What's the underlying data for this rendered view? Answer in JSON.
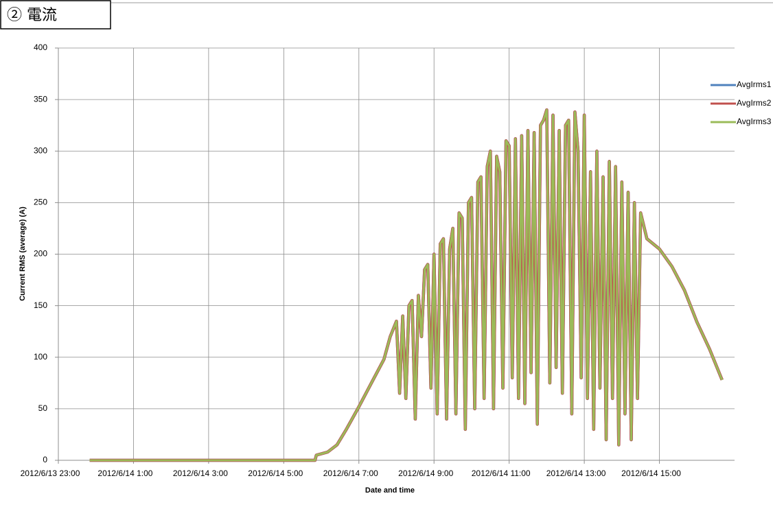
{
  "section_title": "② 電流",
  "chart_data": {
    "type": "line",
    "y_label": "Current RMS (average) (A)",
    "x_label": "Date and time",
    "x": [
      "2012/6/13 23:50",
      "2012/6/14 1:00",
      "2012/6/14 3:00",
      "2012/6/14 5:00",
      "2012/6/14 5:50",
      "2012/6/14 5:52",
      "2012/6/14 6:10",
      "2012/6/14 6:25",
      "2012/6/14 6:40",
      "2012/6/14 7:00",
      "2012/6/14 7:20",
      "2012/6/14 7:40",
      "2012/6/14 7:50",
      "2012/6/14 8:00",
      "2012/6/14 8:05",
      "2012/6/14 8:10",
      "2012/6/14 8:15",
      "2012/6/14 8:20",
      "2012/6/14 8:25",
      "2012/6/14 8:30",
      "2012/6/14 8:35",
      "2012/6/14 8:40",
      "2012/6/14 8:45",
      "2012/6/14 8:50",
      "2012/6/14 8:55",
      "2012/6/14 9:00",
      "2012/6/14 9:05",
      "2012/6/14 9:10",
      "2012/6/14 9:15",
      "2012/6/14 9:20",
      "2012/6/14 9:25",
      "2012/6/14 9:30",
      "2012/6/14 9:35",
      "2012/6/14 9:40",
      "2012/6/14 9:45",
      "2012/6/14 9:50",
      "2012/6/14 9:55",
      "2012/6/14 10:00",
      "2012/6/14 10:05",
      "2012/6/14 10:10",
      "2012/6/14 10:15",
      "2012/6/14 10:20",
      "2012/6/14 10:25",
      "2012/6/14 10:30",
      "2012/6/14 10:35",
      "2012/6/14 10:40",
      "2012/6/14 10:45",
      "2012/6/14 10:50",
      "2012/6/14 10:55",
      "2012/6/14 11:00",
      "2012/6/14 11:05",
      "2012/6/14 11:10",
      "2012/6/14 11:15",
      "2012/6/14 11:20",
      "2012/6/14 11:25",
      "2012/6/14 11:30",
      "2012/6/14 11:35",
      "2012/6/14 11:40",
      "2012/6/14 11:45",
      "2012/6/14 11:50",
      "2012/6/14 11:55",
      "2012/6/14 12:00",
      "2012/6/14 12:05",
      "2012/6/14 12:10",
      "2012/6/14 12:15",
      "2012/6/14 12:20",
      "2012/6/14 12:25",
      "2012/6/14 12:30",
      "2012/6/14 12:35",
      "2012/6/14 12:40",
      "2012/6/14 12:45",
      "2012/6/14 12:50",
      "2012/6/14 12:55",
      "2012/6/14 13:00",
      "2012/6/14 13:05",
      "2012/6/14 13:10",
      "2012/6/14 13:15",
      "2012/6/14 13:20",
      "2012/6/14 13:25",
      "2012/6/14 13:30",
      "2012/6/14 13:35",
      "2012/6/14 13:40",
      "2012/6/14 13:45",
      "2012/6/14 13:50",
      "2012/6/14 13:55",
      "2012/6/14 14:00",
      "2012/6/14 14:05",
      "2012/6/14 14:10",
      "2012/6/14 14:15",
      "2012/6/14 14:20",
      "2012/6/14 14:25",
      "2012/6/14 14:30",
      "2012/6/14 14:40",
      "2012/6/14 15:00",
      "2012/6/14 15:20",
      "2012/6/14 15:40",
      "2012/6/14 16:00",
      "2012/6/14 16:20",
      "2012/6/14 16:40"
    ],
    "series": [
      {
        "name": "AvgIrms1",
        "color": "#4f81bd",
        "values": [
          0,
          0,
          0,
          0,
          0,
          5,
          8,
          15,
          30,
          52,
          75,
          98,
          120,
          135,
          65,
          140,
          60,
          150,
          155,
          40,
          160,
          120,
          185,
          190,
          70,
          200,
          45,
          210,
          215,
          40,
          205,
          225,
          45,
          240,
          235,
          30,
          250,
          255,
          50,
          270,
          275,
          60,
          285,
          300,
          50,
          295,
          280,
          70,
          310,
          305,
          80,
          312,
          60,
          315,
          55,
          320,
          85,
          318,
          35,
          325,
          330,
          340,
          75,
          335,
          90,
          320,
          65,
          325,
          330,
          45,
          338,
          300,
          80,
          335,
          60,
          280,
          30,
          300,
          70,
          275,
          20,
          290,
          60,
          285,
          15,
          270,
          45,
          260,
          20,
          250,
          60,
          240,
          215,
          205,
          188,
          165,
          134,
          108,
          78
        ]
      },
      {
        "name": "AvgIrms2",
        "color": "#c0504d",
        "values": [
          0,
          0,
          0,
          0,
          0,
          5,
          8,
          15,
          30,
          52,
          75,
          98,
          120,
          135,
          65,
          140,
          60,
          150,
          155,
          40,
          160,
          120,
          185,
          190,
          70,
          200,
          45,
          210,
          215,
          40,
          205,
          225,
          45,
          240,
          235,
          30,
          250,
          255,
          50,
          270,
          275,
          60,
          285,
          300,
          50,
          295,
          280,
          70,
          310,
          305,
          80,
          312,
          60,
          315,
          55,
          320,
          85,
          318,
          35,
          325,
          330,
          340,
          75,
          335,
          90,
          320,
          65,
          325,
          330,
          45,
          338,
          300,
          80,
          335,
          60,
          280,
          30,
          300,
          70,
          275,
          20,
          290,
          60,
          285,
          15,
          270,
          45,
          260,
          20,
          250,
          60,
          240,
          215,
          205,
          188,
          165,
          134,
          108,
          78
        ]
      },
      {
        "name": "AvgIrms3",
        "color": "#9bbb59",
        "values": [
          0,
          0,
          0,
          0,
          0,
          5,
          8,
          15,
          30,
          52,
          75,
          98,
          120,
          135,
          65,
          140,
          60,
          150,
          155,
          40,
          160,
          120,
          185,
          190,
          70,
          200,
          45,
          210,
          215,
          40,
          205,
          225,
          45,
          240,
          235,
          30,
          250,
          255,
          50,
          270,
          275,
          60,
          285,
          300,
          50,
          295,
          280,
          70,
          310,
          305,
          80,
          312,
          60,
          315,
          55,
          320,
          85,
          318,
          35,
          325,
          330,
          340,
          75,
          335,
          90,
          320,
          65,
          325,
          330,
          45,
          338,
          300,
          80,
          335,
          60,
          280,
          30,
          300,
          70,
          275,
          20,
          290,
          60,
          285,
          15,
          270,
          45,
          260,
          20,
          250,
          60,
          240,
          215,
          205,
          188,
          165,
          134,
          108,
          78
        ]
      }
    ],
    "xlim": [
      "2012/6/13 23:00",
      "2012/6/14 17:00"
    ],
    "xticks": [
      "2012/6/13 23:00",
      "2012/6/14 1:00",
      "2012/6/14 3:00",
      "2012/6/14 5:00",
      "2012/6/14 7:00",
      "2012/6/14 9:00",
      "2012/6/14 11:00",
      "2012/6/14 13:00",
      "2012/6/14 15:00"
    ],
    "ylim": [
      0,
      400
    ],
    "yticks": [
      0,
      50,
      100,
      150,
      200,
      250,
      300,
      350,
      400
    ],
    "grid": true,
    "legend": "upper right"
  }
}
